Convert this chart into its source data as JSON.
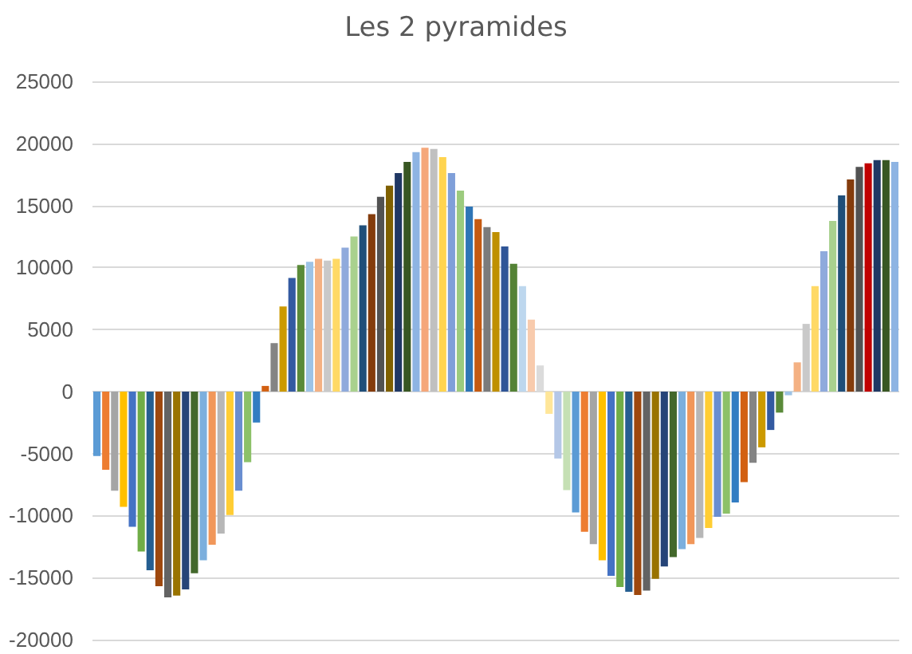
{
  "chart_data": {
    "type": "bar",
    "title": "Les 2 pyramides",
    "categories": [
      null,
      null,
      null,
      null,
      null,
      null,
      null,
      null,
      null,
      null,
      null,
      null,
      null,
      null,
      null,
      null,
      null,
      null,
      null,
      null,
      null,
      null,
      null,
      null,
      null,
      null,
      null,
      null,
      null,
      null,
      null,
      null,
      null,
      null,
      null,
      null,
      null,
      null,
      null,
      null,
      null,
      null,
      null,
      null,
      null,
      null,
      null,
      null,
      null,
      null,
      null,
      null,
      null,
      null,
      null,
      null,
      null,
      null,
      null,
      null,
      null,
      null,
      null,
      null,
      null,
      null,
      null,
      null,
      null,
      null,
      null,
      null,
      null,
      null,
      null,
      null,
      null,
      null,
      null,
      null,
      null,
      null,
      null,
      null,
      null,
      null,
      null,
      null,
      null,
      null,
      null
    ],
    "values": [
      -5200,
      -6300,
      -8000,
      -9300,
      -10900,
      -12900,
      -14400,
      -15700,
      -16600,
      -16450,
      -15950,
      -14650,
      -13600,
      -12350,
      -11450,
      -9950,
      -8000,
      -5700,
      -2500,
      450,
      3900,
      6850,
      9150,
      10200,
      10450,
      10700,
      10550,
      10700,
      11600,
      12500,
      13400,
      14300,
      15700,
      16600,
      17600,
      18500,
      19300,
      19650,
      19550,
      18900,
      17600,
      16200,
      14900,
      13900,
      13250,
      12850,
      11700,
      10300,
      8500,
      5800,
      2100,
      -1800,
      -5400,
      -7950,
      -9750,
      -11300,
      -12300,
      -13600,
      -14850,
      -15750,
      -16150,
      -16400,
      -16050,
      -15100,
      -14100,
      -13350,
      -12700,
      -12300,
      -11800,
      -11000,
      -10100,
      -9850,
      -8950,
      -7300,
      -5750,
      -4500,
      -3100,
      -1700,
      -300,
      2350,
      5450,
      8500,
      11300,
      13750,
      15800,
      17100,
      18100,
      18400,
      18650,
      18650,
      18500
    ],
    "colors": [
      "#5b9bd5",
      "#ed7d31",
      "#a5a5a5",
      "#ffc000",
      "#4472c4",
      "#70ad47",
      "#255e91",
      "#9e480e",
      "#636363",
      "#997300",
      "#264478",
      "#43682b",
      "#7cafdd",
      "#f1975a",
      "#b7b7b7",
      "#ffcd33",
      "#698ed0",
      "#8cc168",
      "#327dc2",
      "#d26012",
      "#848484",
      "#cc9a00",
      "#335aa1",
      "#5a8a39",
      "#9dc3e6",
      "#f4b183",
      "#c9c9c9",
      "#ffd966",
      "#8faadc",
      "#a9d18e",
      "#1f4e79",
      "#843c0c",
      "#525252",
      "#7f6000",
      "#203864",
      "#385723",
      "#8eb4e3",
      "#f5a77a",
      "#c0c0c0",
      "#ffd44f",
      "#7f9fd9",
      "#9ccb7e",
      "#2e75b6",
      "#c55a11",
      "#7b7b7b",
      "#bf9000",
      "#2f5597",
      "#548235",
      "#bdd7ee",
      "#f8cbad",
      "#dbdbdb",
      "#ffe699",
      "#b4c7e7",
      "#c5e0b4",
      "#5b9bd5",
      "#ed7d31",
      "#a5a5a5",
      "#ffc000",
      "#4472c4",
      "#70ad47",
      "#255e91",
      "#9e480e",
      "#636363",
      "#997300",
      "#264478",
      "#43682b",
      "#7cafdd",
      "#f1975a",
      "#b7b7b7",
      "#ffcd33",
      "#698ed0",
      "#8cc168",
      "#327dc2",
      "#d26012",
      "#848484",
      "#cc9a00",
      "#335aa1",
      "#5a8a39",
      "#9dc3e6",
      "#f4b183",
      "#c9c9c9",
      "#ffd966",
      "#8faadc",
      "#a9d18e",
      "#1f4e79",
      "#843c0c",
      "#525252",
      "#c00000",
      "#203864",
      "#385723",
      "#8eb4e3"
    ],
    "ylim": [
      -20000,
      25000
    ],
    "yticks": [
      -20000,
      -15000,
      -10000,
      -5000,
      0,
      5000,
      10000,
      15000,
      20000,
      25000
    ],
    "grid": "y"
  }
}
